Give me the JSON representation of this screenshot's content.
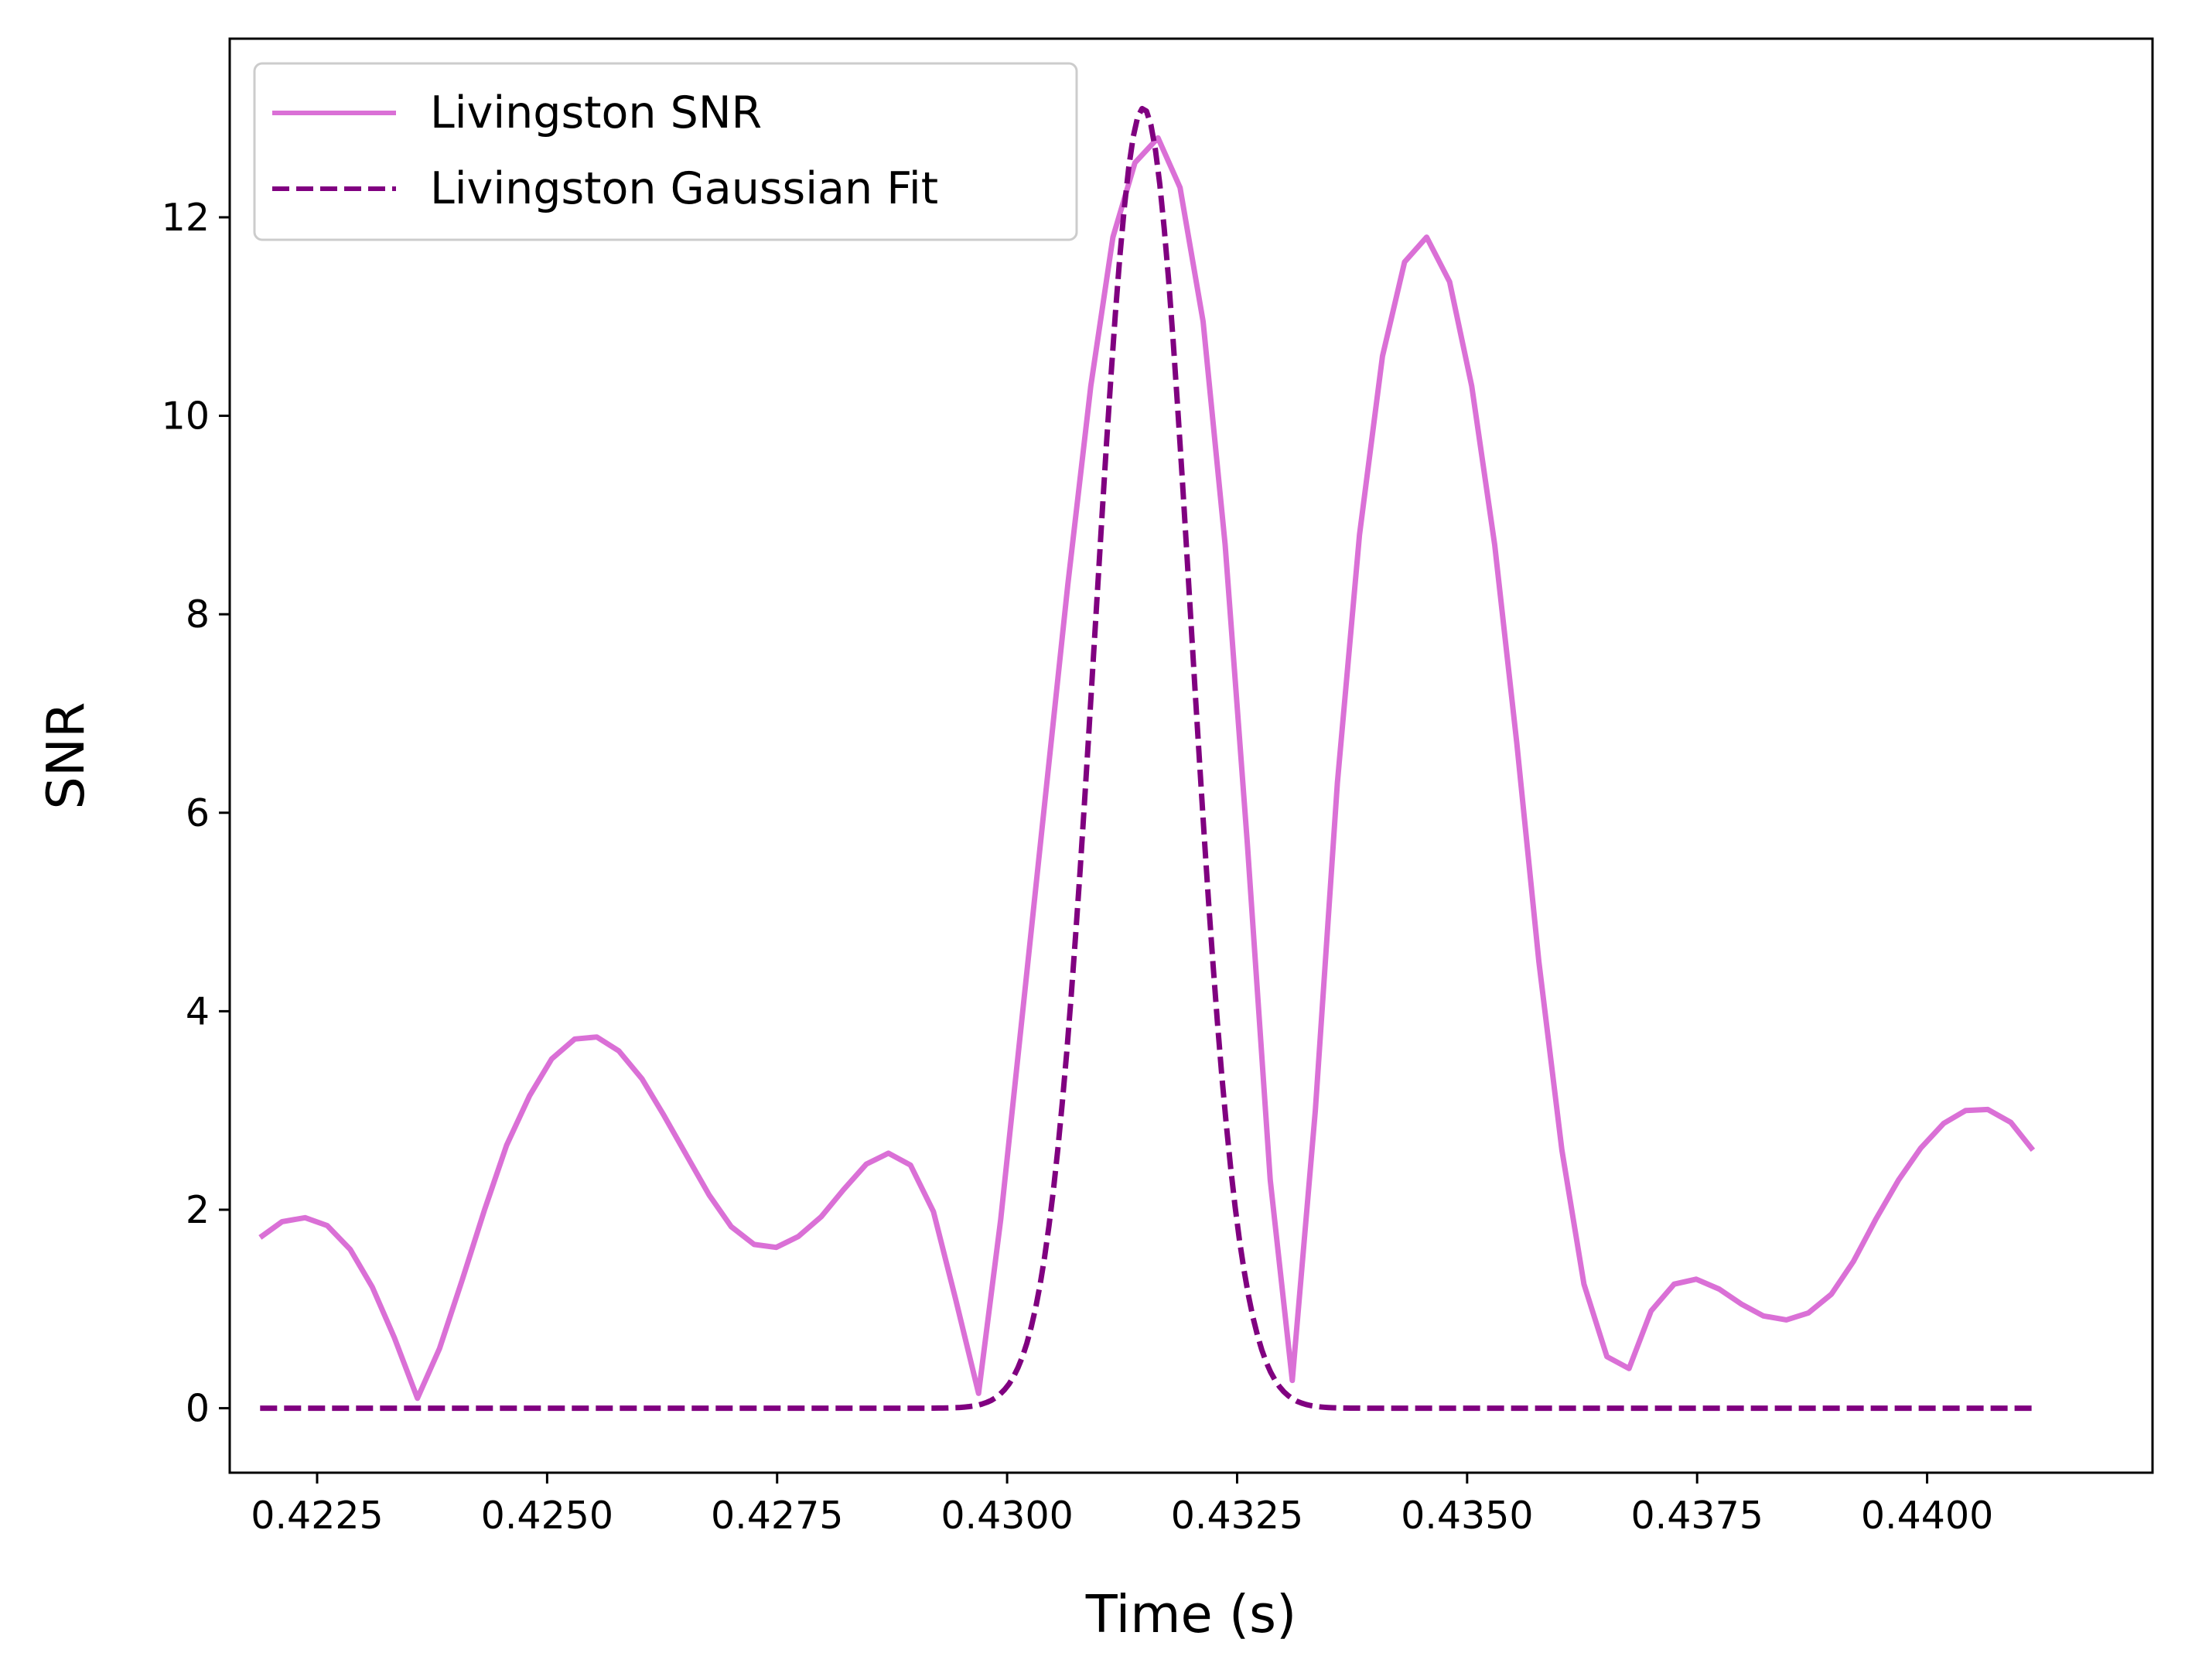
{
  "chart_data": {
    "type": "line",
    "title": "",
    "xlabel": "Time (s)",
    "ylabel": "SNR",
    "xlim": [
      0.42155,
      0.44245
    ],
    "ylim": [
      -0.65,
      13.8
    ],
    "xticks": [
      0.4225,
      0.425,
      0.4275,
      0.43,
      0.4325,
      0.435,
      0.4375,
      0.44
    ],
    "xtick_labels": [
      "0.4225",
      "0.4250",
      "0.4275",
      "0.4300",
      "0.4325",
      "0.4350",
      "0.4375",
      "0.4400"
    ],
    "yticks": [
      0,
      2,
      4,
      6,
      8,
      10,
      12
    ],
    "ytick_labels": [
      "0",
      "2",
      "4",
      "6",
      "8",
      "10",
      "12"
    ],
    "grid": false,
    "legend_position": "top-left",
    "series": [
      {
        "name": "Livingston SNR",
        "color": "#da70d6",
        "style": "solid",
        "x": [
          0.42188,
          0.42212,
          0.42237,
          0.42261,
          0.42286,
          0.4231,
          0.42334,
          0.42359,
          0.42383,
          0.42408,
          0.42432,
          0.42456,
          0.42481,
          0.42505,
          0.4253,
          0.42554,
          0.42578,
          0.42603,
          0.42627,
          0.42652,
          0.42676,
          0.427,
          0.42725,
          0.42749,
          0.42773,
          0.42798,
          0.42822,
          0.42847,
          0.42871,
          0.42895,
          0.4292,
          0.42944,
          0.42969,
          0.42993,
          0.43017,
          0.43042,
          0.43066,
          0.43091,
          0.43115,
          0.43139,
          0.43164,
          0.43188,
          0.43213,
          0.43237,
          0.43261,
          0.43286,
          0.4331,
          0.43335,
          0.43359,
          0.43383,
          0.43408,
          0.43432,
          0.43456,
          0.43481,
          0.43505,
          0.4353,
          0.43554,
          0.43578,
          0.43603,
          0.43627,
          0.43652,
          0.43676,
          0.437,
          0.43725,
          0.43749,
          0.43774,
          0.43798,
          0.43822,
          0.43847,
          0.43871,
          0.43896,
          0.4392,
          0.43944,
          0.43969,
          0.43993,
          0.44018,
          0.44042,
          0.44066,
          0.44091,
          0.44115
        ],
        "y": [
          1.72,
          1.88,
          1.92,
          1.84,
          1.6,
          1.22,
          0.71,
          0.1,
          0.6,
          1.3,
          2.0,
          2.65,
          3.15,
          3.52,
          3.72,
          3.74,
          3.6,
          3.32,
          2.95,
          2.54,
          2.15,
          1.83,
          1.65,
          1.62,
          1.73,
          1.93,
          2.2,
          2.46,
          2.57,
          2.45,
          1.98,
          1.1,
          0.15,
          1.9,
          4.0,
          6.2,
          8.3,
          10.3,
          11.8,
          12.55,
          12.8,
          12.3,
          10.95,
          8.7,
          5.7,
          2.3,
          0.28,
          3.0,
          6.3,
          8.8,
          10.6,
          11.55,
          11.8,
          11.35,
          10.3,
          8.7,
          6.7,
          4.5,
          2.6,
          1.25,
          0.52,
          0.4,
          0.98,
          1.25,
          1.3,
          1.2,
          1.05,
          0.93,
          0.89,
          0.96,
          1.15,
          1.48,
          1.9,
          2.3,
          2.62,
          2.87,
          3.0,
          3.01,
          2.88,
          2.6
        ]
      },
      {
        "name": "Livingston Gaussian Fit",
        "color": "#800080",
        "style": "dashed",
        "gaussian": {
          "amplitude": 13.1,
          "mean": 0.43148,
          "sigma": 0.000517
        },
        "x": [
          0.42188,
          0.426,
          0.428,
          0.4286,
          0.429,
          0.4293,
          0.4296,
          0.4299,
          0.4302,
          0.4305,
          0.4308,
          0.4311,
          0.4313,
          0.43148,
          0.4317,
          0.432,
          0.4323,
          0.4326,
          0.4329,
          0.4332,
          0.4335,
          0.4338,
          0.4342,
          0.435,
          0.44115
        ],
        "y": [
          0.0,
          0.0,
          0.0,
          0.03,
          0.1,
          0.23,
          0.5,
          0.96,
          1.9,
          3.6,
          6.55,
          10.45,
          12.3,
          13.1,
          12.7,
          9.4,
          5.9,
          3.0,
          1.25,
          0.42,
          0.12,
          0.03,
          0.0,
          0.0,
          0.0
        ]
      }
    ]
  }
}
